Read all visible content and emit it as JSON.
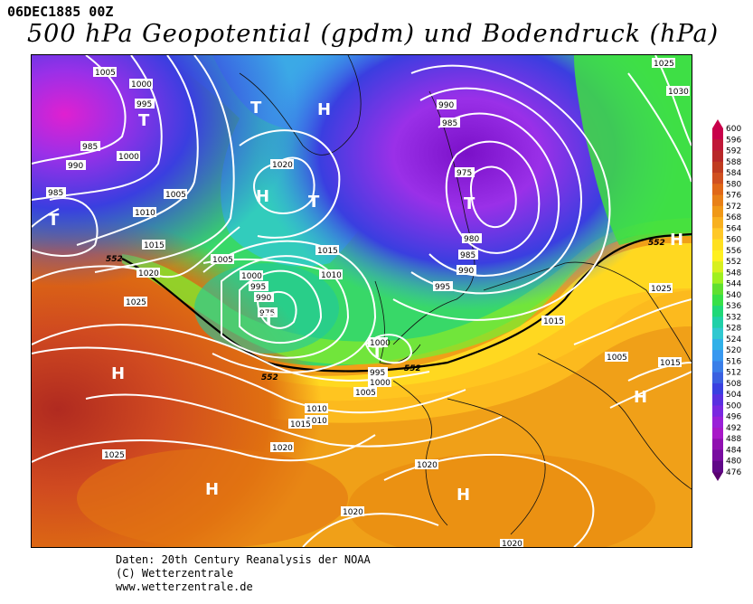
{
  "header": {
    "date": "06DEC1885 00Z",
    "title": "500 hPa Geopotential (gpdm) und Bodendruck (hPa)"
  },
  "colors": {
    "purple": "#7a10c8",
    "violet": "#9a30e8",
    "blue": "#3a3ee0",
    "lightblue": "#3da0f0",
    "cyan": "#30d0d8",
    "teal": "#20d090",
    "green": "#38e048",
    "lime": "#a0f020",
    "yellow": "#ffee10",
    "lightorange": "#ffc020",
    "orange": "#f09a10",
    "darkorange": "#e07010",
    "red": "#d04a20",
    "darkred": "#b02a20"
  },
  "map": {
    "isobar_labels": [
      "1005",
      "1000",
      "995",
      "985",
      "990",
      "985",
      "1000",
      "1010",
      "1015",
      "1005",
      "1020",
      "1025",
      "1020",
      "1015",
      "1010",
      "1005",
      "1000",
      "995",
      "990",
      "975",
      "1015",
      "1010",
      "990",
      "985",
      "975",
      "980",
      "985",
      "990",
      "995",
      "1000",
      "1005",
      "1010",
      "1015",
      "1020",
      "1025",
      "1020",
      "1020",
      "1020",
      "1015",
      "1025",
      "1030",
      "1025",
      "995",
      "1000",
      "1005"
    ],
    "height_labels": [
      "552",
      "552",
      "552",
      "552"
    ],
    "pressure_centers": [
      "T",
      "T",
      "H",
      "H",
      "T",
      "T",
      "T",
      "T",
      "H",
      "H",
      "H",
      "T",
      "H",
      "H"
    ]
  },
  "colorbar": {
    "ticks": [
      "600",
      "596",
      "592",
      "588",
      "584",
      "580",
      "576",
      "572",
      "568",
      "564",
      "560",
      "556",
      "552",
      "548",
      "544",
      "540",
      "536",
      "532",
      "528",
      "524",
      "520",
      "516",
      "512",
      "508",
      "504",
      "500",
      "496",
      "492",
      "488",
      "484",
      "480",
      "476"
    ]
  },
  "footer": {
    "line1": "Daten: 20th Century Reanalysis der NOAA",
    "line2": "(C) Wetterzentrale",
    "line3": "www.wetterzentrale.de"
  }
}
